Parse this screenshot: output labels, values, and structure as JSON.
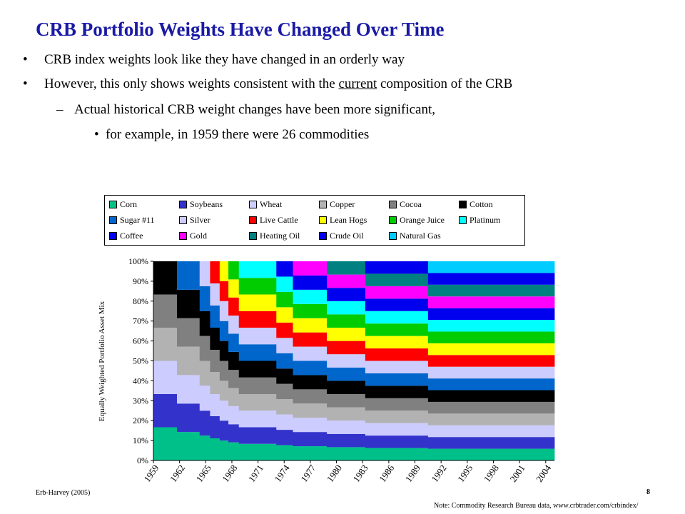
{
  "slide": {
    "title": "CRB Portfolio Weights Have Changed Over Time",
    "bullets": [
      {
        "mark": "•",
        "text": "CRB index weights look like they have changed in an orderly way"
      },
      {
        "mark": "•",
        "pre": "However, this only shows weights consistent with the ",
        "underlined": "current",
        "post": " composition of the CRB"
      },
      {
        "mark": "–",
        "text": "Actual historical CRB weight changes have been more significant,"
      },
      {
        "mark": "•",
        "text": "for example, in 1959 there were 26 commodities"
      }
    ],
    "footer_left": "Erb-Harvey (2005)",
    "page_number": "8",
    "note": "Note: Commodity Research Bureau data, www.crbtrader.com/crbindex/"
  },
  "chart_data": {
    "type": "area",
    "stacked": true,
    "normalized_percent": true,
    "ylabel": "Equally Weighted Portfolio Asset Mix",
    "xlabel": "",
    "ylim": [
      0,
      100
    ],
    "y_ticks": [
      "0%",
      "10%",
      "20%",
      "30%",
      "40%",
      "50%",
      "60%",
      "70%",
      "80%",
      "90%",
      "100%"
    ],
    "x_ticks": [
      "1959",
      "1962",
      "1965",
      "1968",
      "1971",
      "1974",
      "1977",
      "1980",
      "1983",
      "1986",
      "1989",
      "1992",
      "1995",
      "1998",
      "2001",
      "2004"
    ],
    "x_range": [
      1959,
      2005
    ],
    "grid": false,
    "legend_position": "top",
    "series": [
      {
        "name": "Corn",
        "color": "#00c08a",
        "start": 1959
      },
      {
        "name": "Soybeans",
        "color": "#3333cc",
        "start": 1959
      },
      {
        "name": "Wheat",
        "color": "#ccccff",
        "start": 1959
      },
      {
        "name": "Copper",
        "color": "#b2b2b2",
        "start": 1959
      },
      {
        "name": "Cocoa",
        "color": "#808080",
        "start": 1959
      },
      {
        "name": "Cotton",
        "color": "#000000",
        "start": 1959
      },
      {
        "name": "Sugar #11",
        "color": "#0066cc",
        "start": 1961.7
      },
      {
        "name": "Silver",
        "color": "#ccccff",
        "start": 1964.3
      },
      {
        "name": "Live Cattle",
        "color": "#ff0000",
        "start": 1965.5
      },
      {
        "name": "Lean Hogs",
        "color": "#ffff00",
        "start": 1966.6
      },
      {
        "name": "Orange Juice",
        "color": "#00cc00",
        "start": 1967.6
      },
      {
        "name": "Platinum",
        "color": "#00ffff",
        "start": 1968.8
      },
      {
        "name": "Coffee",
        "color": "#0000ee",
        "start": 1973.1
      },
      {
        "name": "Gold",
        "color": "#ff00ff",
        "start": 1975.0
      },
      {
        "name": "Heating Oil",
        "color": "#008080",
        "start": 1978.9
      },
      {
        "name": "Crude Oil",
        "color": "#0000ee",
        "start": 1983.3
      },
      {
        "name": "Natural Gas",
        "color": "#00ccff",
        "start": 1990.5
      }
    ],
    "plot_background": "#ffffff"
  }
}
